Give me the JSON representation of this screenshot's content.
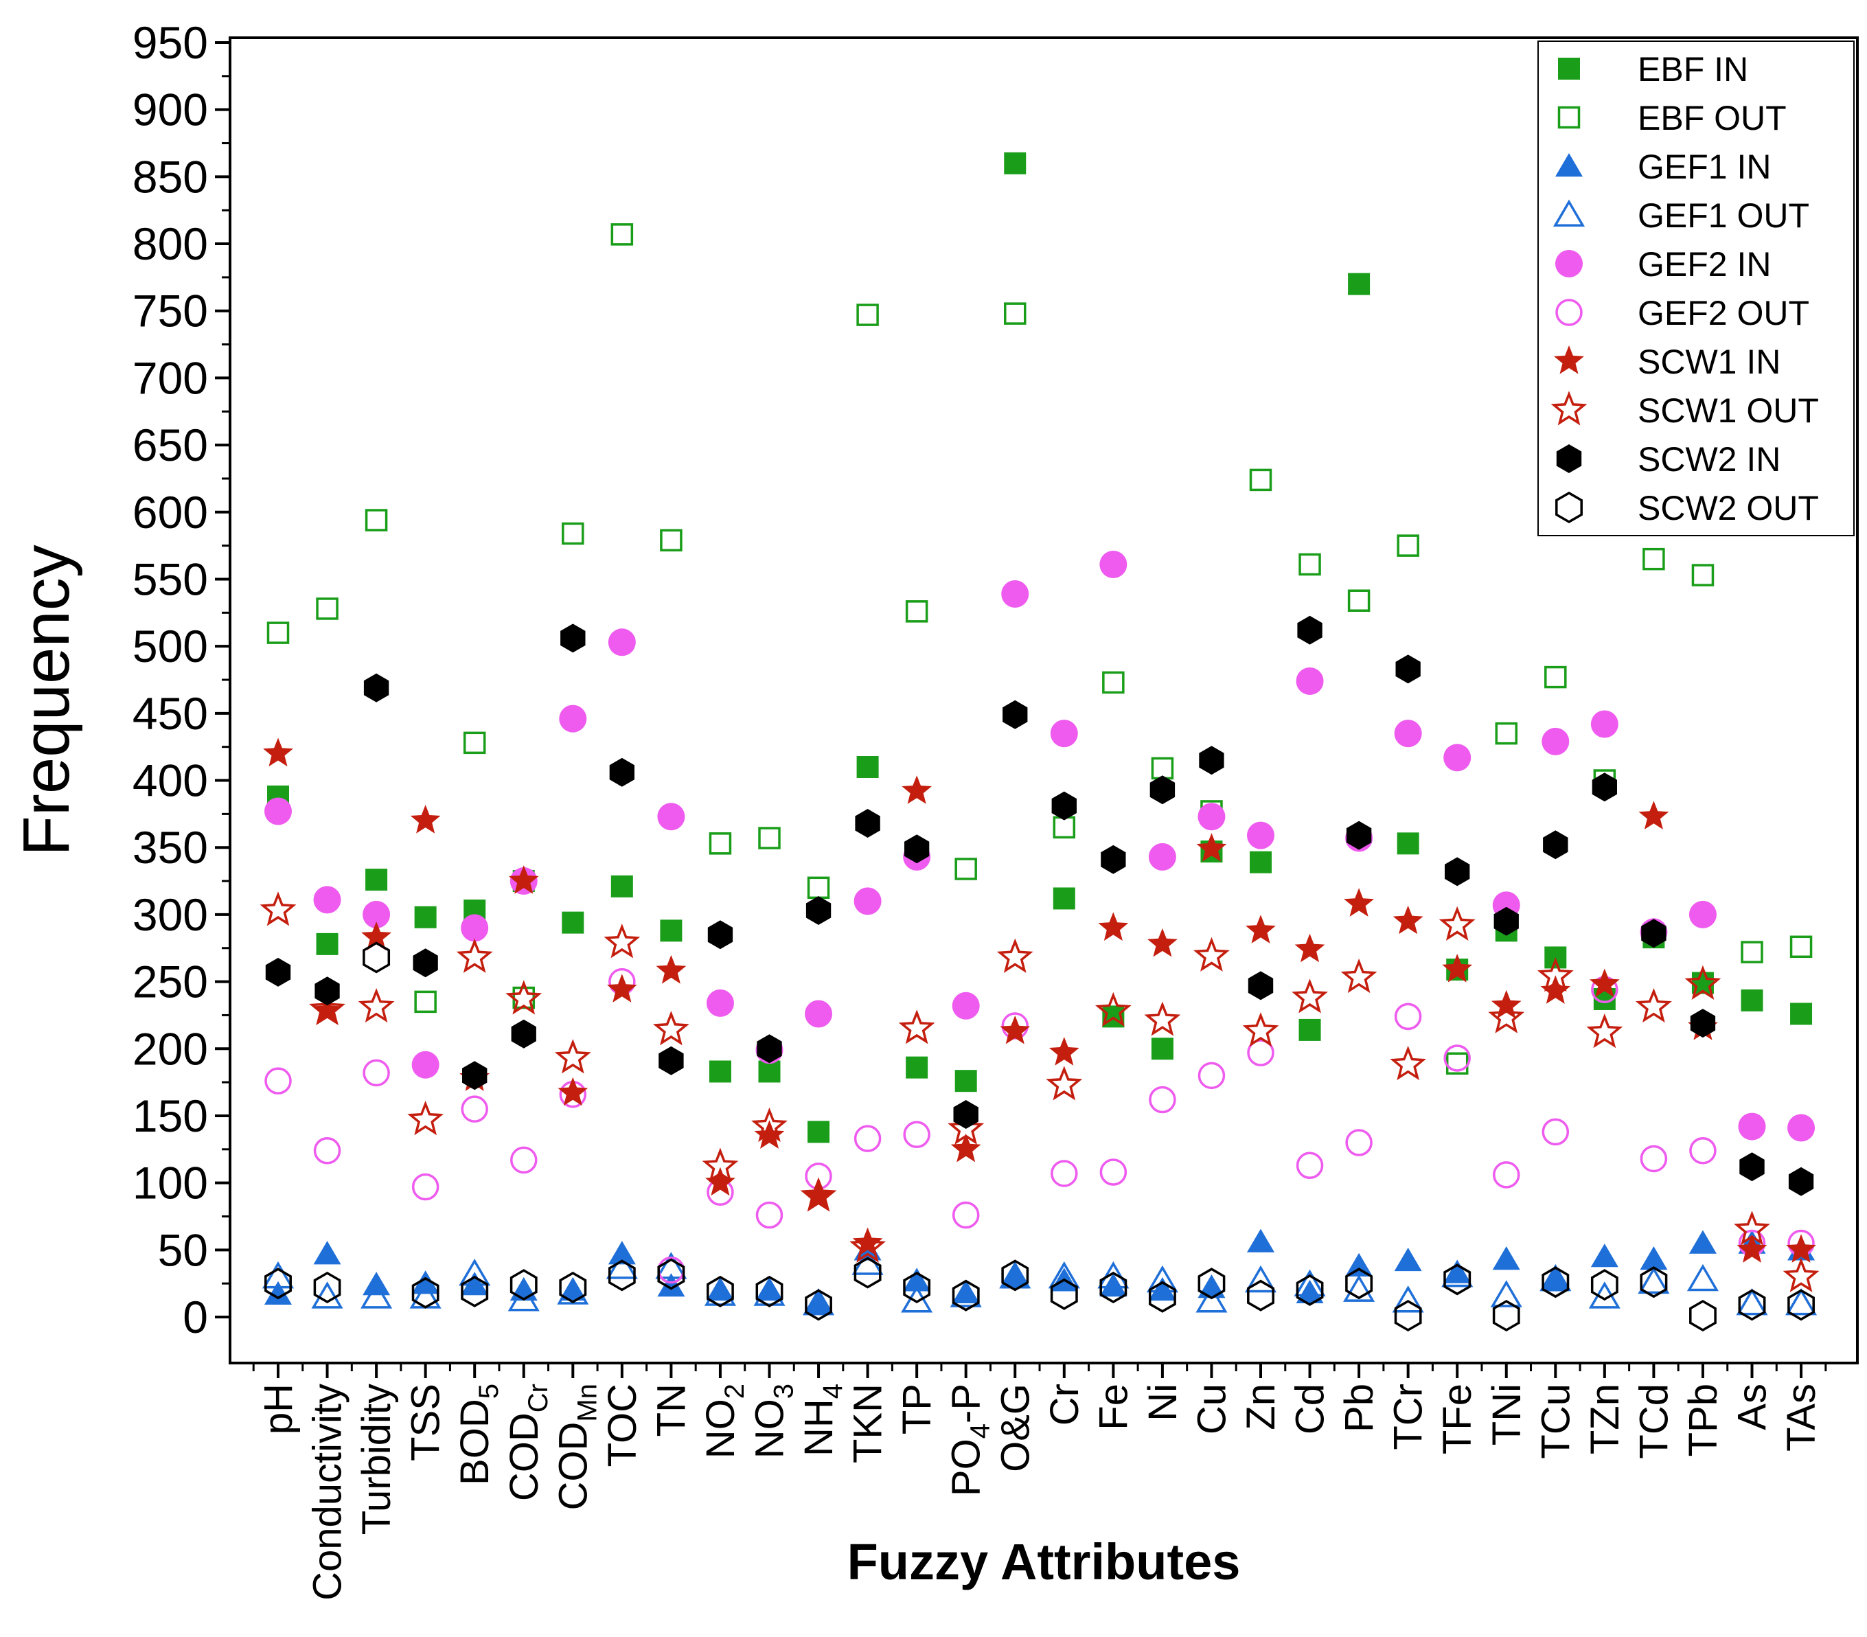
{
  "chart_data": {
    "type": "scatter",
    "title": "",
    "xlabel": "Fuzzy Attributes",
    "ylabel": "Frequency",
    "ylim": [
      0,
      950
    ],
    "yticks": [
      0,
      50,
      100,
      150,
      200,
      250,
      300,
      350,
      400,
      450,
      500,
      550,
      600,
      650,
      700,
      750,
      800,
      850,
      900,
      950
    ],
    "grid": false,
    "legend_position": "top-right",
    "categories": [
      {
        "base": "pH",
        "sub": ""
      },
      {
        "base": "Conductivity",
        "sub": ""
      },
      {
        "base": "Turbidity",
        "sub": ""
      },
      {
        "base": "TSS",
        "sub": ""
      },
      {
        "base": "BOD",
        "sub": "5"
      },
      {
        "base": "COD",
        "sub": "Cr"
      },
      {
        "base": "COD",
        "sub": "Mn"
      },
      {
        "base": "TOC",
        "sub": ""
      },
      {
        "base": "TN",
        "sub": ""
      },
      {
        "base": "NO",
        "sub": "2"
      },
      {
        "base": "NO",
        "sub": "3"
      },
      {
        "base": "NH",
        "sub": "4"
      },
      {
        "base": "TKN",
        "sub": ""
      },
      {
        "base": "TP",
        "sub": ""
      },
      {
        "base": "PO",
        "sub": "4",
        "suffix": "-P"
      },
      {
        "base": "O&G",
        "sub": ""
      },
      {
        "base": "Cr",
        "sub": ""
      },
      {
        "base": "Fe",
        "sub": ""
      },
      {
        "base": "Ni",
        "sub": ""
      },
      {
        "base": "Cu",
        "sub": ""
      },
      {
        "base": "Zn",
        "sub": ""
      },
      {
        "base": "Cd",
        "sub": ""
      },
      {
        "base": "Pb",
        "sub": ""
      },
      {
        "base": "TCr",
        "sub": ""
      },
      {
        "base": "TFe",
        "sub": ""
      },
      {
        "base": "TNi",
        "sub": ""
      },
      {
        "base": "TCu",
        "sub": ""
      },
      {
        "base": "TZn",
        "sub": ""
      },
      {
        "base": "TCd",
        "sub": ""
      },
      {
        "base": "TPb",
        "sub": ""
      },
      {
        "base": "As",
        "sub": ""
      },
      {
        "base": "TAs",
        "sub": ""
      }
    ],
    "series": [
      {
        "name": "EBF IN",
        "marker": "square",
        "filled": true,
        "color": "#1a9e1a",
        "values": [
          388,
          278,
          326,
          298,
          303,
          325,
          294,
          321,
          288,
          183,
          183,
          138,
          410,
          186,
          176,
          860,
          312,
          224,
          200,
          347,
          339,
          214,
          770,
          353,
          259,
          288,
          268,
          237,
          283,
          249,
          236,
          226
        ]
      },
      {
        "name": "EBF OUT",
        "marker": "square",
        "filled": false,
        "color": "#1a9e1a",
        "values": [
          510,
          528,
          594,
          235,
          428,
          238,
          584,
          807,
          579,
          353,
          357,
          320,
          747,
          526,
          334,
          748,
          365,
          473,
          409,
          377,
          624,
          561,
          534,
          575,
          189,
          435,
          477,
          400,
          565,
          553,
          272,
          276
        ]
      },
      {
        "name": "GEF1 IN",
        "marker": "triangle",
        "filled": true,
        "color": "#1f6fd8",
        "values": [
          17,
          47,
          24,
          25,
          24,
          20,
          20,
          47,
          23,
          20,
          20,
          10,
          50,
          27,
          18,
          29,
          27,
          23,
          20,
          22,
          56,
          18,
          38,
          42,
          33,
          43,
          27,
          45,
          43,
          55,
          55,
          50
        ]
      },
      {
        "name": "GEF1 OUT",
        "marker": "triangle",
        "filled": false,
        "color": "#1f6fd8",
        "values": [
          30,
          15,
          15,
          15,
          32,
          13,
          18,
          37,
          37,
          17,
          17,
          10,
          40,
          12,
          16,
          30,
          30,
          30,
          27,
          12,
          27,
          24,
          20,
          12,
          31,
          16,
          28,
          15,
          26,
          28,
          10,
          10
        ]
      },
      {
        "name": "GEF2 IN",
        "marker": "circle",
        "filled": true,
        "color": "#ee5bee",
        "values": [
          377,
          311,
          300,
          188,
          290,
          325,
          446,
          503,
          373,
          234,
          199,
          226,
          310,
          343,
          232,
          539,
          435,
          561,
          343,
          373,
          359,
          474,
          357,
          435,
          417,
          307,
          429,
          442,
          287,
          300,
          142,
          141
        ]
      },
      {
        "name": "GEF2 OUT",
        "marker": "circle",
        "filled": false,
        "color": "#ee5bee",
        "values": [
          176,
          124,
          182,
          97,
          155,
          117,
          166,
          250,
          35,
          93,
          76,
          105,
          133,
          136,
          76,
          217,
          107,
          108,
          162,
          180,
          197,
          113,
          130,
          224,
          193,
          106,
          138,
          244,
          118,
          124,
          55,
          55
        ]
      },
      {
        "name": "SCW1 IN",
        "marker": "star",
        "filled": true,
        "color": "#c41e0e",
        "values": [
          420,
          228,
          283,
          370,
          178,
          325,
          167,
          244,
          258,
          100,
          135,
          90,
          55,
          392,
          125,
          213,
          197,
          290,
          278,
          349,
          288,
          274,
          308,
          295,
          259,
          232,
          243,
          248,
          373,
          216,
          50,
          50
        ]
      },
      {
        "name": "SCW1 OUT",
        "marker": "star",
        "filled": false,
        "color": "#c41e0e",
        "values": [
          303,
          229,
          231,
          147,
          268,
          237,
          193,
          279,
          214,
          112,
          142,
          90,
          52,
          215,
          140,
          268,
          173,
          228,
          221,
          269,
          213,
          238,
          253,
          188,
          292,
          223,
          254,
          212,
          231,
          248,
          65,
          30
        ]
      },
      {
        "name": "SCW2 IN",
        "marker": "hexagon",
        "filled": true,
        "color": "#000000",
        "values": [
          257,
          243,
          469,
          264,
          180,
          211,
          506,
          406,
          191,
          285,
          200,
          303,
          368,
          349,
          151,
          449,
          381,
          341,
          393,
          415,
          247,
          512,
          359,
          483,
          332,
          295,
          352,
          395,
          286,
          219,
          112,
          101
        ]
      },
      {
        "name": "SCW2 OUT",
        "marker": "hexagon",
        "filled": false,
        "color": "#000000",
        "values": [
          25,
          22,
          268,
          18,
          19,
          24,
          22,
          31,
          32,
          19,
          19,
          9,
          33,
          22,
          16,
          31,
          17,
          22,
          15,
          25,
          16,
          20,
          25,
          1,
          28,
          1,
          26,
          24,
          26,
          1,
          9,
          9
        ]
      }
    ]
  }
}
